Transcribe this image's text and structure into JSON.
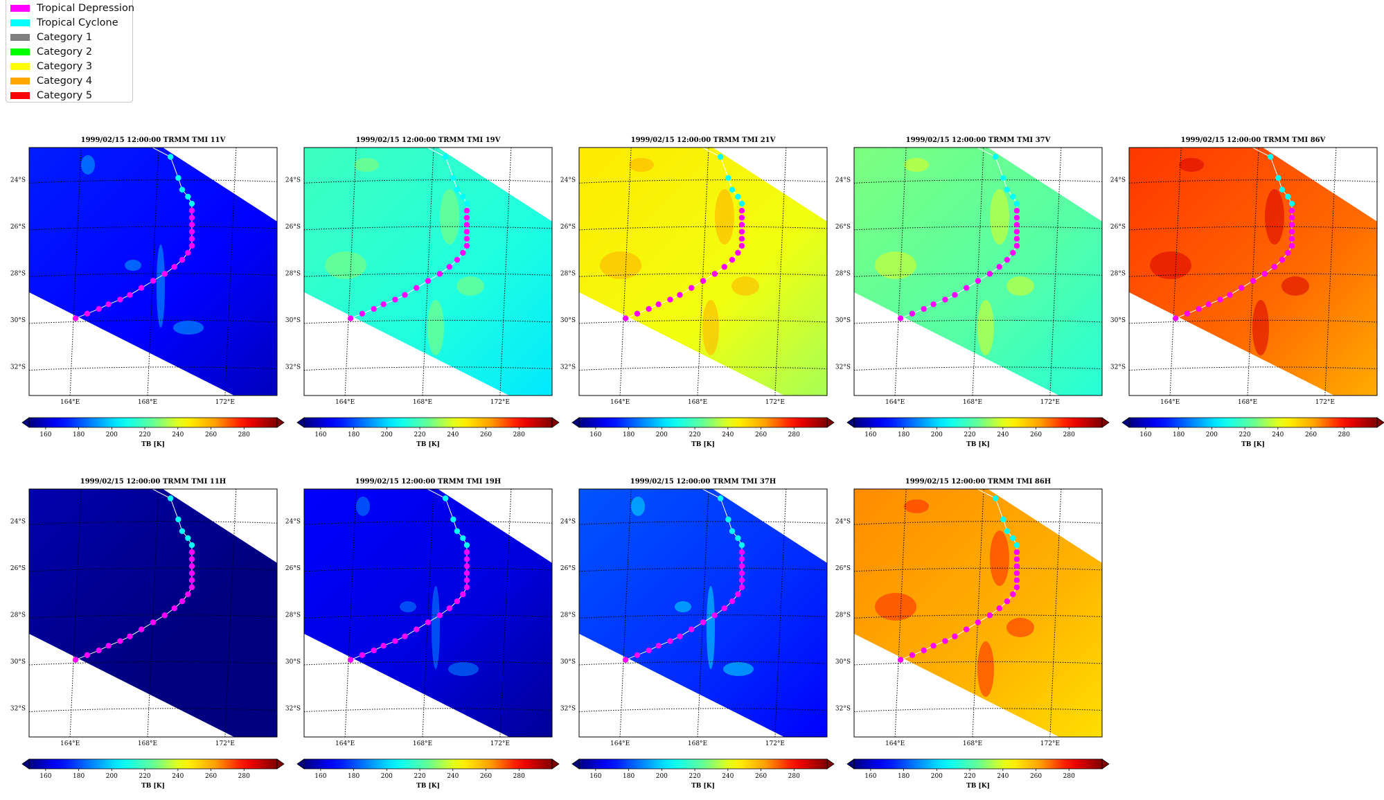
{
  "legend": {
    "items": [
      {
        "label": "Tropical Depression",
        "color": "#ff00ff"
      },
      {
        "label": "Tropical Cyclone",
        "color": "#00ffff"
      },
      {
        "label": "Category 1",
        "color": "#808080"
      },
      {
        "label": "Category 2",
        "color": "#00ff00"
      },
      {
        "label": "Category 3",
        "color": "#ffff00"
      },
      {
        "label": "Category 4",
        "color": "#ffa500"
      },
      {
        "label": "Category 5",
        "color": "#ff0000"
      }
    ]
  },
  "chart_data": [
    {
      "type": "heatmap",
      "title": "1999/02/15 12:00:00  TRMM TMI 11V",
      "base_tb": 170,
      "colorbar_label": "TB [K]",
      "colorbar_ticks": [
        "160",
        "180",
        "200",
        "220",
        "240",
        "260",
        "280"
      ],
      "colorbar_range": [
        150,
        300
      ],
      "x_ticks": [
        "164°E",
        "168°E",
        "172°E"
      ],
      "y_ticks": [
        "24°S",
        "26°S",
        "28°S",
        "30°S",
        "32°S"
      ]
    },
    {
      "type": "heatmap",
      "title": "1999/02/15 12:00:00  TRMM TMI 19V",
      "base_tb": 215,
      "colorbar_label": "TB [K]",
      "colorbar_ticks": [
        "160",
        "180",
        "200",
        "220",
        "240",
        "260",
        "280"
      ],
      "colorbar_range": [
        150,
        300
      ],
      "x_ticks": [
        "164°E",
        "168°E",
        "172°E"
      ],
      "y_ticks": [
        "24°S",
        "26°S",
        "28°S",
        "30°S",
        "32°S"
      ]
    },
    {
      "type": "heatmap",
      "title": "1999/02/15 12:00:00  TRMM TMI 21V",
      "base_tb": 245,
      "colorbar_label": "TB [K]",
      "colorbar_ticks": [
        "160",
        "180",
        "200",
        "220",
        "240",
        "260",
        "280"
      ],
      "colorbar_range": [
        150,
        300
      ],
      "x_ticks": [
        "164°E",
        "168°E",
        "172°E"
      ],
      "y_ticks": [
        "24°S",
        "26°S",
        "28°S",
        "30°S",
        "32°S"
      ]
    },
    {
      "type": "heatmap",
      "title": "1999/02/15 12:00:00  TRMM TMI 37V",
      "base_tb": 225,
      "colorbar_label": "TB [K]",
      "colorbar_ticks": [
        "160",
        "180",
        "200",
        "220",
        "240",
        "260",
        "280"
      ],
      "colorbar_range": [
        150,
        300
      ],
      "x_ticks": [
        "164°E",
        "168°E",
        "172°E"
      ],
      "y_ticks": [
        "24°S",
        "26°S",
        "28°S",
        "30°S",
        "32°S"
      ]
    },
    {
      "type": "heatmap",
      "title": "1999/02/15 12:00:00  TRMM TMI 86V",
      "base_tb": 272,
      "colorbar_label": "TB [K]",
      "colorbar_ticks": [
        "160",
        "180",
        "200",
        "220",
        "240",
        "260",
        "280"
      ],
      "colorbar_range": [
        150,
        300
      ],
      "x_ticks": [
        "164°E",
        "168°E",
        "172°E"
      ],
      "y_ticks": [
        "24°S",
        "26°S",
        "28°S",
        "30°S",
        "32°S"
      ]
    },
    {
      "type": "heatmap",
      "title": "1999/02/15 12:00:00  TRMM TMI 11H",
      "base_tb": 153,
      "colorbar_label": "TB [K]",
      "colorbar_ticks": [
        "160",
        "180",
        "200",
        "220",
        "240",
        "260",
        "280"
      ],
      "colorbar_range": [
        150,
        300
      ],
      "x_ticks": [
        "164°E",
        "168°E",
        "172°E"
      ],
      "y_ticks": [
        "24°S",
        "26°S",
        "28°S",
        "30°S",
        "32°S"
      ]
    },
    {
      "type": "heatmap",
      "title": "1999/02/15 12:00:00  TRMM TMI 19H",
      "base_tb": 165,
      "colorbar_label": "TB [K]",
      "colorbar_ticks": [
        "160",
        "180",
        "200",
        "220",
        "240",
        "260",
        "280"
      ],
      "colorbar_range": [
        150,
        300
      ],
      "x_ticks": [
        "164°E",
        "168°E",
        "172°E"
      ],
      "y_ticks": [
        "24°S",
        "26°S",
        "28°S",
        "30°S",
        "32°S"
      ]
    },
    {
      "type": "heatmap",
      "title": "1999/02/15 12:00:00  TRMM TMI 37H",
      "base_tb": 178,
      "colorbar_label": "TB [K]",
      "colorbar_ticks": [
        "160",
        "180",
        "200",
        "220",
        "240",
        "260",
        "280"
      ],
      "colorbar_range": [
        150,
        300
      ],
      "x_ticks": [
        "164°E",
        "168°E",
        "172°E"
      ],
      "y_ticks": [
        "24°S",
        "26°S",
        "28°S",
        "30°S",
        "32°S"
      ]
    },
    {
      "type": "heatmap",
      "title": "1999/02/15 12:00:00  TRMM TMI 86H",
      "base_tb": 262,
      "colorbar_label": "TB [K]",
      "colorbar_ticks": [
        "160",
        "180",
        "200",
        "220",
        "240",
        "260",
        "280"
      ],
      "colorbar_range": [
        150,
        300
      ],
      "x_ticks": [
        "164°E",
        "168°E",
        "172°E"
      ],
      "y_ticks": [
        "24°S",
        "26°S",
        "28°S",
        "30°S",
        "32°S"
      ]
    }
  ],
  "track": {
    "points": [
      {
        "lon": 167.5,
        "lat": -22.4,
        "cat": "TC"
      },
      {
        "lon": 168.9,
        "lat": -23.0,
        "cat": "TC"
      },
      {
        "lon": 169.3,
        "lat": -23.9,
        "cat": "TC"
      },
      {
        "lon": 169.5,
        "lat": -24.4,
        "cat": "TC"
      },
      {
        "lon": 169.8,
        "lat": -24.7,
        "cat": "TC"
      },
      {
        "lon": 170.0,
        "lat": -25.0,
        "cat": "TC"
      },
      {
        "lon": 170.0,
        "lat": -25.3,
        "cat": "TD"
      },
      {
        "lon": 170.0,
        "lat": -25.6,
        "cat": "TD"
      },
      {
        "lon": 170.0,
        "lat": -25.9,
        "cat": "TD"
      },
      {
        "lon": 170.0,
        "lat": -26.2,
        "cat": "TD"
      },
      {
        "lon": 170.0,
        "lat": -26.5,
        "cat": "TD"
      },
      {
        "lon": 170.0,
        "lat": -26.8,
        "cat": "TD"
      },
      {
        "lon": 169.8,
        "lat": -27.1,
        "cat": "TD"
      },
      {
        "lon": 169.5,
        "lat": -27.4,
        "cat": "TD"
      },
      {
        "lon": 169.1,
        "lat": -27.7,
        "cat": "TD"
      },
      {
        "lon": 168.6,
        "lat": -28.0,
        "cat": "TD"
      },
      {
        "lon": 168.0,
        "lat": -28.3,
        "cat": "TD"
      },
      {
        "lon": 167.4,
        "lat": -28.6,
        "cat": "TD"
      },
      {
        "lon": 166.8,
        "lat": -28.9,
        "cat": "TD"
      },
      {
        "lon": 166.3,
        "lat": -29.1,
        "cat": "TD"
      },
      {
        "lon": 165.7,
        "lat": -29.3,
        "cat": "TD"
      },
      {
        "lon": 165.2,
        "lat": -29.5,
        "cat": "TD"
      },
      {
        "lon": 164.6,
        "lat": -29.7,
        "cat": "TD"
      },
      {
        "lon": 164.0,
        "lat": -29.9,
        "cat": "TD"
      }
    ]
  }
}
